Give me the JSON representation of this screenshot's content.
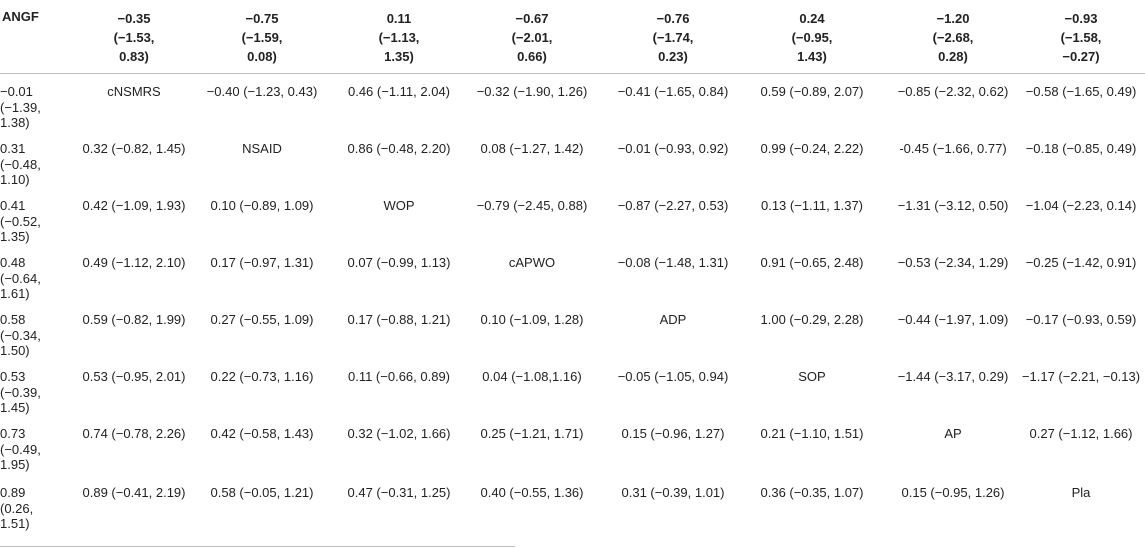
{
  "table": {
    "corner_label": "ANGF",
    "header": [
      {
        "l1": "−0.35",
        "l2": "(−1.53,",
        "l3": "0.83)"
      },
      {
        "l1": "−0.75",
        "l2": "(−1.59,",
        "l3": "0.08)"
      },
      {
        "l1": "0.11",
        "l2": "(−1.13,",
        "l3": "1.35)"
      },
      {
        "l1": "−0.67",
        "l2": "(−2.01,",
        "l3": "0.66)"
      },
      {
        "l1": "−0.76",
        "l2": "(−1.74,",
        "l3": "0.23)"
      },
      {
        "l1": "0.24",
        "l2": "(−0.95,",
        "l3": "1.43)"
      },
      {
        "l1": "−1.20",
        "l2": "(−2.68,",
        "l3": "0.28)"
      },
      {
        "l1": "−0.93",
        "l2": "(−1.58,",
        "l3": "−0.27)"
      }
    ],
    "rows": [
      {
        "first": {
          "l1": "−0.01",
          "l2": "(−1.39,",
          "l3": "1.38)"
        },
        "cells": [
          "cNSMRS",
          "−0.40 (−1.23, 0.43)",
          "0.46 (−1.11, 2.04)",
          "−0.32 (−1.90, 1.26)",
          "−0.41 (−1.65, 0.84)",
          "0.59 (−0.89, 2.07)",
          "−0.85 (−2.32, 0.62)",
          "−0.58 (−1.65, 0.49)"
        ]
      },
      {
        "first": {
          "l1": "0.31",
          "l2": "(−0.48,",
          "l3": "1.10)"
        },
        "cells": [
          "0.32 (−0.82, 1.45)",
          "NSAID",
          "0.86 (−0.48, 2.20)",
          "0.08 (−1.27, 1.42)",
          "−0.01 (−0.93, 0.92)",
          "0.99 (−0.24, 2.22)",
          "-0.45 (−1.66, 0.77)",
          "−0.18 (−0.85, 0.49)"
        ]
      },
      {
        "first": {
          "l1": "0.41",
          "l2": "(−0.52,",
          "l3": "1.35)"
        },
        "cells": [
          "0.42 (−1.09, 1.93)",
          "0.10 (−0.89, 1.09)",
          "WOP",
          "−0.79 (−2.45, 0.88)",
          "−0.87 (−2.27, 0.53)",
          "0.13 (−1.11, 1.37)",
          "−1.31 (−3.12, 0.50)",
          "−1.04 (−2.23, 0.14)"
        ]
      },
      {
        "first": {
          "l1": "0.48",
          "l2": "(−0.64,",
          "l3": "1.61)"
        },
        "cells": [
          "0.49 (−1.12, 2.10)",
          "0.17 (−0.97, 1.31)",
          "0.07 (−0.99, 1.13)",
          "cAPWO",
          "−0.08 (−1.48, 1.31)",
          "0.91 (−0.65, 2.48)",
          "−0.53 (−2.34, 1.29)",
          "−0.25 (−1.42, 0.91)"
        ]
      },
      {
        "first": {
          "l1": "0.58",
          "l2": "(−0.34,",
          "l3": "1.50)"
        },
        "cells": [
          "0.59 (−0.82, 1.99)",
          "0.27 (−0.55, 1.09)",
          "0.17 (−0.88, 1.21)",
          "0.10 (−1.09, 1.28)",
          "ADP",
          "1.00 (−0.29, 2.28)",
          "−0.44 (−1.97, 1.09)",
          "−0.17 (−0.93, 0.59)"
        ]
      },
      {
        "first": {
          "l1": "0.53",
          "l2": "(−0.39,",
          "l3": "1.45)"
        },
        "cells": [
          "0.53 (−0.95, 2.01)",
          "0.22 (−0.73, 1.16)",
          "0.11 (−0.66, 0.89)",
          "0.04 (−1.08,1.16)",
          "−0.05 (−1.05, 0.94)",
          "SOP",
          "−1.44 (−3.17, 0.29)",
          "−1.17 (−2.21, −0.13)"
        ]
      },
      {
        "first": {
          "l1": "0.73",
          "l2": "(−0.49,",
          "l3": "1.95)"
        },
        "cells": [
          "0.74 (−0.78, 2.26)",
          "0.42 (−0.58, 1.43)",
          "0.32 (−1.02, 1.66)",
          "0.25 (−1.21, 1.71)",
          "0.15 (−0.96, 1.27)",
          "0.21 (−1.10, 1.51)",
          "AP",
          "0.27 (−1.12, 1.66)"
        ]
      },
      {
        "first": {
          "l1": "0.89",
          "l2": "(0.26,",
          "l3": "1.51)"
        },
        "cells": [
          "0.89 (−0.41, 2.19)",
          "0.58 (−0.05, 1.21)",
          "0.47 (−0.31, 1.25)",
          "0.40 (−0.55, 1.36)",
          "0.31 (−0.39, 1.01)",
          "0.36 (−0.35, 1.07)",
          "0.15 (−0.95, 1.26)",
          "Pla"
        ]
      }
    ]
  }
}
